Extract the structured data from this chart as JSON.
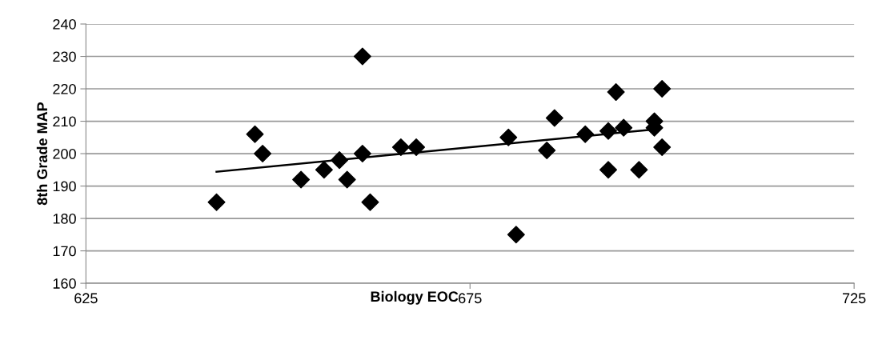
{
  "chart_data": {
    "type": "scatter",
    "xlabel": "Biology EOC",
    "ylabel": "8th Grade MAP",
    "xlim": [
      625,
      725
    ],
    "xticks": [
      625,
      675,
      725
    ],
    "ylim": [
      160,
      240
    ],
    "yticks": [
      160,
      170,
      180,
      190,
      200,
      210,
      220,
      230,
      240
    ],
    "grid": "y",
    "series": [
      {
        "marker": "diamond",
        "color": "#000000",
        "x": [
          642,
          647,
          648,
          653,
          656,
          658,
          659,
          661,
          661,
          662,
          666,
          668,
          680,
          681,
          685,
          686,
          690,
          693,
          693,
          694,
          695,
          697,
          699,
          699,
          700,
          700
        ],
        "values": [
          185,
          206,
          200,
          192,
          195,
          198,
          192,
          230,
          200,
          185,
          202,
          202,
          205,
          175,
          201,
          211,
          206,
          207,
          195,
          219,
          208,
          195,
          210,
          208,
          220,
          202
        ]
      },
      {
        "type": "line",
        "marker": "none",
        "color": "#000000",
        "x": [
          642,
          699.5
        ],
        "values": [
          194.4,
          207.6
        ]
      }
    ]
  }
}
